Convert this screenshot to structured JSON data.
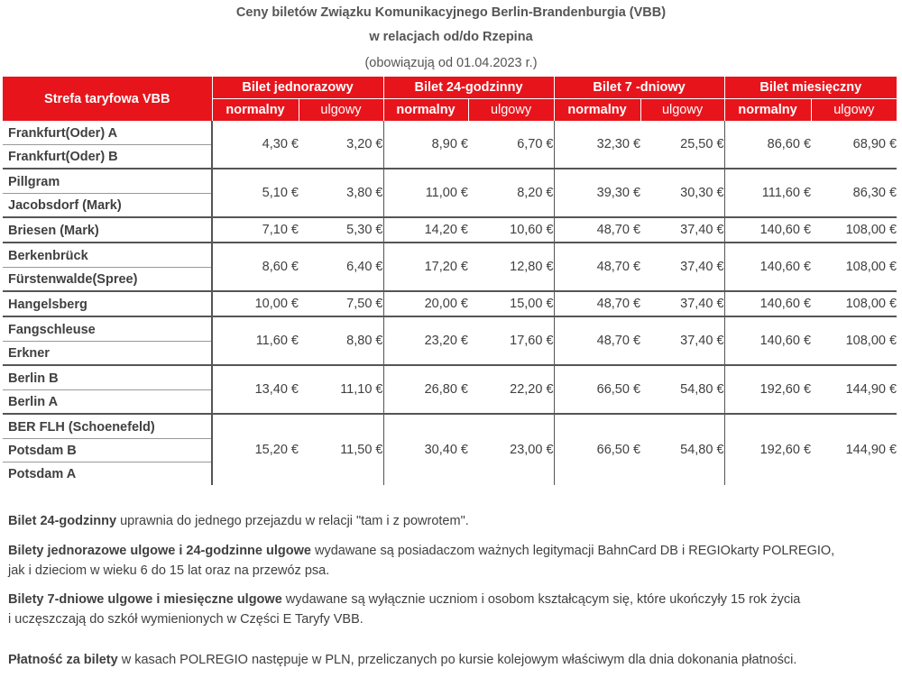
{
  "title": {
    "line1": "Ceny biletów Związku Komunikacyjnego Berlin-Brandenburgia (VBB)",
    "line2": "w relacjach od/do Rzepina",
    "line3": "(obowiązują od 01.04.2023 r.)"
  },
  "header": {
    "zone": "Strefa taryfowa VBB",
    "groups": [
      "Bilet jednorazowy",
      "Bilet 24-godzinny",
      "Bilet 7 -dniowy",
      "Bilet miesięczny"
    ],
    "normal": "normalny",
    "reduced": "ulgowy"
  },
  "rows": [
    {
      "zones": [
        "Frankfurt(Oder) A",
        "Frankfurt(Oder) B"
      ],
      "prices": [
        "4,30 €",
        "3,20 €",
        "8,90 €",
        "6,70 €",
        "32,30 €",
        "25,50 €",
        "86,60 €",
        "68,90 €"
      ]
    },
    {
      "zones": [
        "Pillgram",
        "Jacobsdorf (Mark)"
      ],
      "prices": [
        "5,10 €",
        "3,80 €",
        "11,00 €",
        "8,20 €",
        "39,30 €",
        "30,30 €",
        "111,60 €",
        "86,30 €"
      ]
    },
    {
      "zones": [
        "Briesen (Mark)"
      ],
      "prices": [
        "7,10 €",
        "5,30 €",
        "14,20 €",
        "10,60 €",
        "48,70 €",
        "37,40 €",
        "140,60 €",
        "108,00 €"
      ]
    },
    {
      "zones": [
        "Berkenbrück",
        "Fürstenwalde(Spree)"
      ],
      "prices": [
        "8,60 €",
        "6,40 €",
        "17,20 €",
        "12,80 €",
        "48,70 €",
        "37,40 €",
        "140,60 €",
        "108,00 €"
      ]
    },
    {
      "zones": [
        "Hangelsberg"
      ],
      "prices": [
        "10,00 €",
        "7,50 €",
        "20,00 €",
        "15,00 €",
        "48,70 €",
        "37,40 €",
        "140,60 €",
        "108,00 €"
      ]
    },
    {
      "zones": [
        "Fangschleuse",
        "Erkner"
      ],
      "prices": [
        "11,60 €",
        "8,80 €",
        "23,20 €",
        "17,60 €",
        "48,70 €",
        "37,40 €",
        "140,60 €",
        "108,00 €"
      ]
    },
    {
      "zones": [
        "Berlin B",
        "Berlin A"
      ],
      "prices": [
        "13,40 €",
        "11,10 €",
        "26,80 €",
        "22,20 €",
        "66,50 €",
        "54,80 €",
        "192,60 €",
        "144,90 €"
      ]
    },
    {
      "zones": [
        "BER FLH (Schoenefeld)",
        "Potsdam B",
        "Potsdam A"
      ],
      "prices": [
        "15,20 €",
        "11,50 €",
        "30,40 €",
        "23,00 €",
        "66,50 €",
        "54,80 €",
        "192,60 €",
        "144,90 €"
      ]
    }
  ],
  "notes": {
    "n1_bold": "Bilet 24-godzinny",
    "n1_text": " uprawnia do jednego przejazdu w relacji \"tam i z powrotem\".",
    "n2_bold": "Bilety jednorazowe ulgowe i 24-godzinne ulgowe",
    "n2_text": " wydawane są posiadaczom ważnych legitymacji BahnCard DB i REGIOkarty POLREGIO,",
    "n2_text2": "jak i dzieciom w wieku 6 do 15 lat oraz na przewóz psa.",
    "n3_bold": "Bilety 7-dniowe ulgowe i miesięczne ulgowe",
    "n3_text": " wydawane są wyłącznie uczniom i osobom kształcącym się, które ukończyły 15 rok życia",
    "n3_text2": "i uczęszczają do szkół wymienionych w Części E Taryfy VBB.",
    "n4_bold": "Płatność za bilety",
    "n4_text": " w kasach POLREGIO następuje w PLN, przeliczanych po kursie kolejowym właściwym dla dnia dokonania płatności."
  }
}
